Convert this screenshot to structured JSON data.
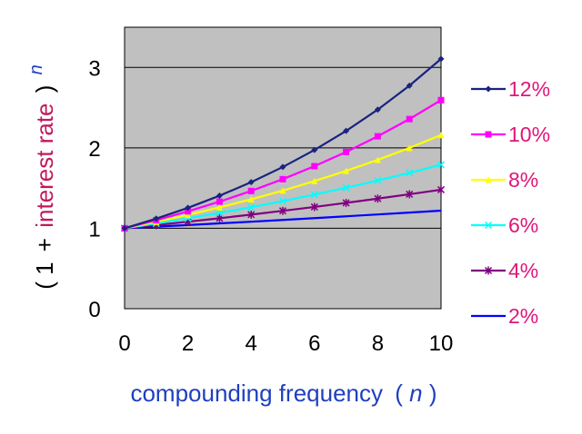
{
  "chart_data": {
    "type": "line",
    "title": "",
    "xlabel": {
      "main": "compounding frequency",
      "open": "(",
      "var": "n",
      "close": ")"
    },
    "ylabel": {
      "open": "(",
      "one": "1",
      "plus": "+",
      "text": "interest rate",
      "close": ")",
      "exp": "n"
    },
    "xlim": [
      0,
      10
    ],
    "ylim": [
      0,
      3.5
    ],
    "x_ticks": [
      0,
      2,
      4,
      6,
      8,
      10
    ],
    "y_ticks": [
      0,
      1,
      2,
      3
    ],
    "grid": "horizontal",
    "legend_position": "right",
    "plot_background": "#c0c0c0",
    "x": [
      0,
      1,
      2,
      3,
      4,
      5,
      6,
      7,
      8,
      9,
      10
    ],
    "series": [
      {
        "name": "12%",
        "color": "#1a237e",
        "marker": "diamond",
        "values": [
          1.0,
          1.12,
          1.254,
          1.405,
          1.574,
          1.762,
          1.974,
          2.211,
          2.476,
          2.773,
          3.106
        ]
      },
      {
        "name": "10%",
        "color": "#ff00ff",
        "marker": "square",
        "values": [
          1.0,
          1.1,
          1.21,
          1.331,
          1.464,
          1.611,
          1.772,
          1.949,
          2.144,
          2.358,
          2.594
        ]
      },
      {
        "name": "8%",
        "color": "#ffff00",
        "marker": "triangle",
        "values": [
          1.0,
          1.08,
          1.166,
          1.26,
          1.36,
          1.469,
          1.587,
          1.714,
          1.851,
          1.999,
          2.159
        ]
      },
      {
        "name": "6%",
        "color": "#00ffff",
        "marker": "x",
        "values": [
          1.0,
          1.06,
          1.124,
          1.191,
          1.262,
          1.338,
          1.419,
          1.504,
          1.594,
          1.689,
          1.791
        ]
      },
      {
        "name": "4%",
        "color": "#800080",
        "marker": "asterisk",
        "values": [
          1.0,
          1.04,
          1.082,
          1.125,
          1.17,
          1.217,
          1.265,
          1.316,
          1.369,
          1.423,
          1.48
        ]
      },
      {
        "name": "2%",
        "color": "#0000ff",
        "marker": "none",
        "values": [
          1.0,
          1.02,
          1.04,
          1.061,
          1.082,
          1.104,
          1.126,
          1.149,
          1.172,
          1.195,
          1.219
        ]
      }
    ],
    "colors": {
      "legend_text": "#e0157a",
      "xlabel_text": "#1f3fbf",
      "ylabel_text": "#000000",
      "ylabel_emphasis": "#c2185b",
      "ylabel_exponent": "#1f3fbf"
    }
  }
}
